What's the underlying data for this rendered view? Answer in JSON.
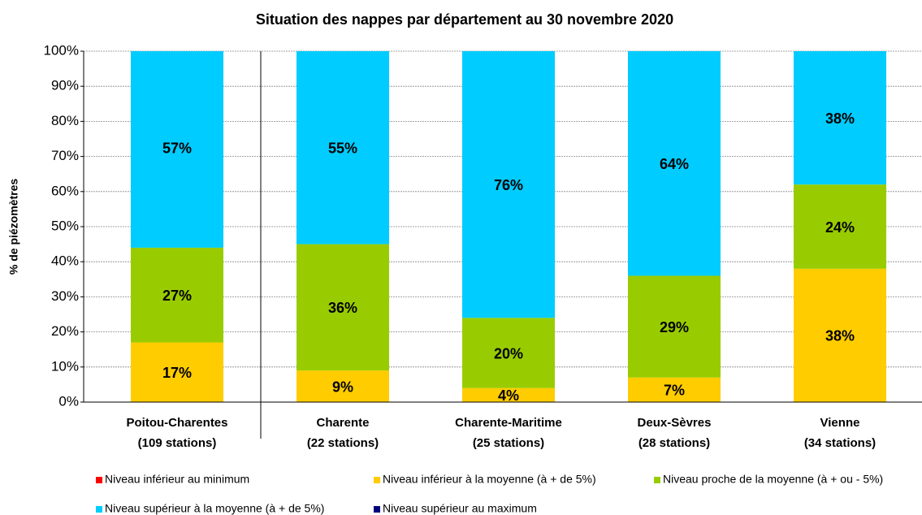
{
  "chart_data": {
    "type": "stacked_bar",
    "title": "Situation des nappes par département au 30 novembre 2020",
    "y_label": "% de piézomètres",
    "categories": [
      [
        "Poitou-Charentes",
        "(109 stations)"
      ],
      [
        "Charente",
        "(22 stations)"
      ],
      [
        "Charente-Maritime",
        "(25 stations)"
      ],
      [
        "Deux-Sèvres",
        "(28 stations)"
      ],
      [
        "Vienne",
        "(34 stations)"
      ]
    ],
    "series": [
      {
        "name": "Niveau inférieur au minimum",
        "color": "#ff0000",
        "values": [
          0,
          0,
          0,
          0,
          0
        ]
      },
      {
        "name": "Niveau inférieur à la moyenne (à + de 5%)",
        "color": "#ffcc00",
        "values": [
          17,
          9,
          4,
          7,
          38
        ],
        "value_labels": [
          "17%",
          "9%",
          "4%",
          "7%",
          "38%"
        ]
      },
      {
        "name": "Niveau proche de la moyenne (à + ou - 5%)",
        "color": "#99cc00",
        "values": [
          27,
          36,
          20,
          29,
          24
        ],
        "value_labels": [
          "27%",
          "36%",
          "20%",
          "29%",
          "24%"
        ]
      },
      {
        "name": "Niveau supérieur à la moyenne (à + de  5%)",
        "color": "#00ccff",
        "values": [
          57,
          55,
          76,
          64,
          38
        ],
        "value_labels": [
          "57%",
          "55%",
          "76%",
          "64%",
          "38%"
        ]
      },
      {
        "name": "Niveau supérieur au maximum",
        "color": "#000080",
        "values": [
          0,
          0,
          0,
          0,
          0
        ]
      }
    ],
    "ylim": [
      0,
      100
    ],
    "yticks": [
      {
        "value": 0,
        "label": "0%"
      },
      {
        "value": 10,
        "label": "10%"
      },
      {
        "value": 20,
        "label": "20%"
      },
      {
        "value": 30,
        "label": "30%"
      },
      {
        "value": 40,
        "label": "40%"
      },
      {
        "value": 50,
        "label": "50%"
      },
      {
        "value": 60,
        "label": "60%"
      },
      {
        "value": 70,
        "label": "70%"
      },
      {
        "value": 80,
        "label": "80%"
      },
      {
        "value": 90,
        "label": "90%"
      },
      {
        "value": 100,
        "label": "100%"
      }
    ],
    "grid": true,
    "legend": "bottom"
  }
}
